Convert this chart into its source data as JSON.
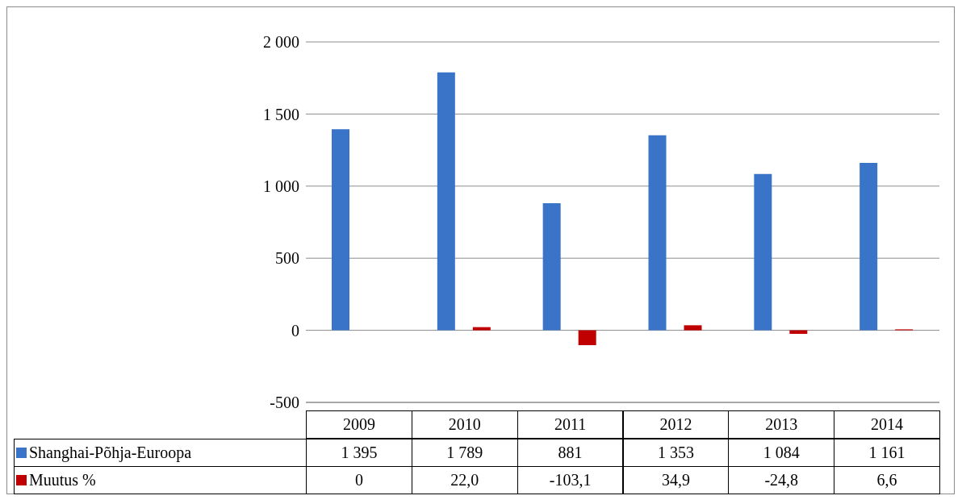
{
  "chart_data": {
    "type": "bar",
    "categories": [
      "2009",
      "2010",
      "2011",
      "2012",
      "2013",
      "2014"
    ],
    "series": [
      {
        "name": "Shanghai-Põhja-Euroopa",
        "color": "#3a74c8",
        "values": [
          1395,
          1789,
          881,
          1353,
          1084,
          1161
        ],
        "value_labels": [
          "1 395",
          "1 789",
          "881",
          "1 353",
          "1 084",
          "1 161"
        ]
      },
      {
        "name": "Muutus %",
        "color": "#c00000",
        "values": [
          0,
          22.0,
          -103.1,
          34.9,
          -24.8,
          6.6
        ],
        "value_labels": [
          "0",
          "22,0",
          "-103,1",
          "34,9",
          "-24,8",
          "6,6"
        ]
      }
    ],
    "ylim": [
      -500,
      2000
    ],
    "yticks": [
      {
        "value": 2000,
        "label": "2 000"
      },
      {
        "value": 1500,
        "label": "1 500"
      },
      {
        "value": 1000,
        "label": "1 000"
      },
      500,
      0,
      -500
    ],
    "grid": "y",
    "legend": "bottom"
  }
}
